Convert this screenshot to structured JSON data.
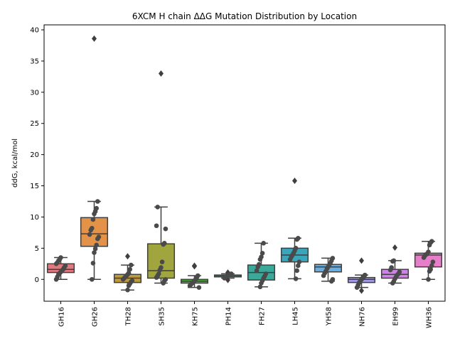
{
  "chart_data": {
    "type": "box",
    "title": "6XCM H chain ΔΔG Mutation Distribution by Location",
    "ylabel": "ddG, kcal/mol",
    "xlabel": "",
    "ylim": [
      -3.5,
      40.8
    ],
    "yticks": [
      0,
      5,
      10,
      15,
      20,
      25,
      30,
      35,
      40
    ],
    "grid": false,
    "legend": "none",
    "categories": [
      "GH16",
      "GH26",
      "TH28",
      "SH35",
      "KH75",
      "PH14",
      "FH27",
      "LH45",
      "YH58",
      "NH76",
      "EH99",
      "WH36"
    ],
    "colors": [
      "#e1797f",
      "#e39248",
      "#bf9c3b",
      "#a0a63d",
      "#57ac43",
      "#5cb489",
      "#3ba99a",
      "#3aa6bc",
      "#6aaee0",
      "#a09ae8",
      "#cf83e6",
      "#e77ec9"
    ],
    "boxes": [
      {
        "q1": 1.1,
        "median": 1.6,
        "q3": 2.5,
        "whislo": 0.0,
        "whishi": 3.5,
        "fliers": []
      },
      {
        "q1": 5.3,
        "median": 7.3,
        "q3": 9.9,
        "whislo": 0.0,
        "whishi": 12.5,
        "fliers": [
          38.6
        ]
      },
      {
        "q1": -0.5,
        "median": 0.2,
        "q3": 0.8,
        "whislo": -1.7,
        "whishi": 2.3,
        "fliers": [
          3.7
        ]
      },
      {
        "q1": 0.2,
        "median": 1.4,
        "q3": 5.7,
        "whislo": -0.6,
        "whishi": 11.6,
        "fliers": [
          33.0
        ]
      },
      {
        "q1": -0.6,
        "median": -0.3,
        "q3": 0.0,
        "whislo": -1.3,
        "whishi": 0.6,
        "fliers": [
          2.1,
          2.2
        ]
      },
      {
        "q1": 0.4,
        "median": 0.6,
        "q3": 0.7,
        "whislo": 0.2,
        "whishi": 0.9,
        "fliers": [
          -0.1,
          1.1
        ]
      },
      {
        "q1": -0.1,
        "median": 1.1,
        "q3": 2.3,
        "whislo": -1.2,
        "whishi": 5.8,
        "fliers": []
      },
      {
        "q1": 2.8,
        "median": 3.9,
        "q3": 5.0,
        "whislo": 0.1,
        "whishi": 6.6,
        "fliers": [
          15.8
        ]
      },
      {
        "q1": 1.2,
        "median": 2.0,
        "q3": 2.4,
        "whislo": -0.3,
        "whishi": 3.4,
        "fliers": []
      },
      {
        "q1": -0.5,
        "median": 0.0,
        "q3": 0.3,
        "whislo": -1.3,
        "whishi": 0.7,
        "fliers": [
          3.0,
          -1.8
        ]
      },
      {
        "q1": 0.2,
        "median": 0.8,
        "q3": 1.6,
        "whislo": -0.6,
        "whishi": 3.0,
        "fliers": [
          5.1
        ]
      },
      {
        "q1": 2.0,
        "median": 3.9,
        "q3": 4.2,
        "whislo": 0.0,
        "whishi": 6.1,
        "fliers": []
      }
    ],
    "points": [
      [
        0.0,
        0.4,
        0.8,
        1.0,
        1.2,
        1.4,
        1.6,
        1.9,
        2.2,
        2.5,
        2.7,
        3.0,
        3.2,
        3.5
      ],
      [
        0.0,
        2.6,
        4.3,
        4.9,
        5.5,
        6.5,
        6.8,
        7.2,
        7.9,
        8.2,
        9.6,
        10.5,
        10.9,
        11.4,
        12.5
      ],
      [
        -1.7,
        -1.0,
        -0.7,
        -0.4,
        -0.2,
        0.0,
        0.2,
        0.4,
        0.6,
        0.8,
        1.0,
        1.6,
        2.3
      ],
      [
        -0.6,
        -0.2,
        0.0,
        0.3,
        0.6,
        0.9,
        1.5,
        1.9,
        2.8,
        5.6,
        5.8,
        8.1,
        8.6,
        11.6
      ],
      [
        -1.3,
        -1.0,
        -0.8,
        -0.6,
        -0.4,
        -0.2,
        0.0,
        0.3,
        0.6
      ],
      [
        0.2,
        0.4,
        0.5,
        0.6,
        0.7,
        0.8,
        0.9
      ],
      [
        -1.2,
        -0.6,
        -0.2,
        0.2,
        0.5,
        0.9,
        1.4,
        2.0,
        2.4,
        3.2,
        3.6,
        4.2,
        5.8
      ],
      [
        0.1,
        1.4,
        2.2,
        2.8,
        3.2,
        3.6,
        3.9,
        4.2,
        4.6,
        5.0,
        6.4,
        6.6
      ],
      [
        -0.3,
        0.0,
        0.6,
        1.0,
        1.3,
        1.7,
        2.0,
        2.3,
        2.6,
        3.0,
        3.4
      ],
      [
        -1.3,
        -0.9,
        -0.5,
        -0.2,
        0.0,
        0.2,
        0.4,
        0.7
      ],
      [
        -0.6,
        -0.3,
        0.1,
        0.4,
        0.7,
        0.9,
        1.2,
        1.5,
        1.9,
        2.9,
        3.0
      ],
      [
        0.0,
        1.3,
        1.6,
        2.2,
        2.8,
        3.5,
        3.8,
        4.0,
        4.1,
        4.4,
        5.5,
        5.9,
        6.1
      ]
    ]
  }
}
